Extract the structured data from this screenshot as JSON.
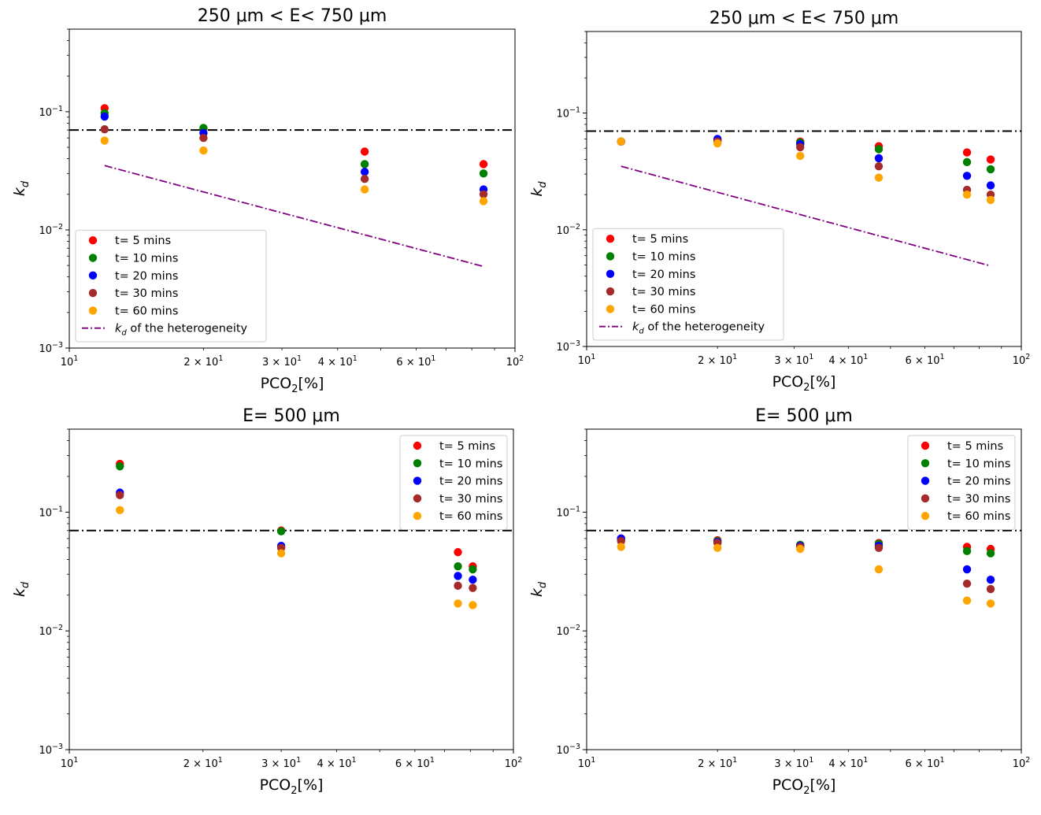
{
  "chart_data": [
    {
      "type": "scatter",
      "title": "250 μm < E< 750 μm",
      "xlabel": "PCO",
      "xlabel_sub": "2",
      "xlabel_suffix": "[%]",
      "ylabel": "k",
      "ylabel_sub": "d",
      "xscale": "log",
      "yscale": "log",
      "xlim": [
        10,
        100
      ],
      "ylim": [
        0.001,
        0.5
      ],
      "legend_position": "lower-left",
      "reference_line": {
        "y": 0.07,
        "style": "dash-dot",
        "color": "#000000"
      },
      "trend_line": {
        "legend_prefix": "k",
        "legend_sub": "d",
        "legend_suffix": " of the heterogeneity",
        "color": "#800080",
        "style": "dash-dot",
        "x": [
          12,
          85
        ],
        "y": [
          0.035,
          0.0049
        ]
      },
      "series": [
        {
          "name": "t= 5 mins",
          "color": "#ff0000",
          "x": [
            12,
            20,
            46,
            85
          ],
          "y": [
            0.107,
            0.072,
            0.046,
            0.036
          ]
        },
        {
          "name": "t= 10 mins",
          "color": "#008000",
          "x": [
            12,
            20,
            46,
            85
          ],
          "y": [
            0.097,
            0.073,
            0.036,
            0.03
          ]
        },
        {
          "name": "t= 20 mins",
          "color": "#0000ff",
          "x": [
            12,
            20,
            46,
            85
          ],
          "y": [
            0.091,
            0.066,
            0.031,
            0.022
          ]
        },
        {
          "name": "t= 30 mins",
          "color": "#a52a2a",
          "x": [
            12,
            20,
            46,
            85
          ],
          "y": [
            0.071,
            0.06,
            0.027,
            0.02
          ]
        },
        {
          "name": "t= 60 mins",
          "color": "#ffa500",
          "x": [
            12,
            20,
            46,
            85
          ],
          "y": [
            0.057,
            0.047,
            0.022,
            0.0175
          ]
        }
      ]
    },
    {
      "type": "scatter",
      "title": "250 μm < E< 750 μm",
      "xlabel": "PCO",
      "xlabel_sub": "2",
      "xlabel_suffix": "[%]",
      "ylabel": "k",
      "ylabel_sub": "d",
      "xscale": "log",
      "yscale": "log",
      "xlim": [
        10,
        100
      ],
      "ylim": [
        0.001,
        0.5
      ],
      "legend_position": "lower-left",
      "reference_line": {
        "y": 0.07,
        "style": "dash-dot",
        "color": "#000000"
      },
      "trend_line": {
        "legend_prefix": "k",
        "legend_sub": "d",
        "legend_suffix": " of the heterogeneity",
        "color": "#800080",
        "style": "dash-dot",
        "x": [
          12,
          85
        ],
        "y": [
          0.035,
          0.0049
        ]
      },
      "series": [
        {
          "name": "t= 5 mins",
          "color": "#ff0000",
          "x": [
            12,
            20,
            31,
            47,
            75,
            85
          ],
          "y": [
            0.057,
            0.058,
            0.057,
            0.052,
            0.046,
            0.04
          ]
        },
        {
          "name": "t= 10 mins",
          "color": "#008000",
          "x": [
            12,
            20,
            31,
            47,
            75,
            85
          ],
          "y": [
            0.057,
            0.058,
            0.056,
            0.049,
            0.038,
            0.033
          ]
        },
        {
          "name": "t= 20 mins",
          "color": "#0000ff",
          "x": [
            12,
            20,
            31,
            47,
            75,
            85
          ],
          "y": [
            0.057,
            0.06,
            0.054,
            0.041,
            0.029,
            0.024
          ]
        },
        {
          "name": "t= 30 mins",
          "color": "#a52a2a",
          "x": [
            12,
            20,
            31,
            47,
            75,
            85
          ],
          "y": [
            0.057,
            0.057,
            0.051,
            0.035,
            0.022,
            0.02
          ]
        },
        {
          "name": "t= 60 mins",
          "color": "#ffa500",
          "x": [
            12,
            20,
            31,
            47,
            75,
            85
          ],
          "y": [
            0.057,
            0.055,
            0.043,
            0.028,
            0.02,
            0.018
          ]
        }
      ]
    },
    {
      "type": "scatter",
      "title": "E= 500 μm",
      "xlabel": "PCO",
      "xlabel_sub": "2",
      "xlabel_suffix": "[%]",
      "ylabel": "k",
      "ylabel_sub": "d",
      "xscale": "log",
      "yscale": "log",
      "xlim": [
        10,
        100
      ],
      "ylim": [
        0.001,
        0.5
      ],
      "legend_position": "top-right",
      "reference_line": {
        "y": 0.07,
        "style": "dash-dot",
        "color": "#000000"
      },
      "series": [
        {
          "name": "t= 5 mins",
          "color": "#ff0000",
          "x": [
            13,
            30,
            75,
            81
          ],
          "y": [
            0.255,
            0.07,
            0.046,
            0.035
          ]
        },
        {
          "name": "t= 10 mins",
          "color": "#008000",
          "x": [
            13,
            30,
            75,
            81
          ],
          "y": [
            0.243,
            0.069,
            0.035,
            0.033
          ]
        },
        {
          "name": "t= 20 mins",
          "color": "#0000ff",
          "x": [
            13,
            30,
            75,
            81
          ],
          "y": [
            0.146,
            0.052,
            0.029,
            0.027
          ]
        },
        {
          "name": "t= 30 mins",
          "color": "#a52a2a",
          "x": [
            13,
            30,
            75,
            81
          ],
          "y": [
            0.139,
            0.05,
            0.024,
            0.023
          ]
        },
        {
          "name": "t= 60 mins",
          "color": "#ffa500",
          "x": [
            13,
            30,
            75,
            81
          ],
          "y": [
            0.104,
            0.045,
            0.017,
            0.0165
          ]
        }
      ]
    },
    {
      "type": "scatter",
      "title": "E= 500 μm",
      "xlabel": "PCO",
      "xlabel_sub": "2",
      "xlabel_suffix": "[%]",
      "ylabel": "k",
      "ylabel_sub": "d",
      "xscale": "log",
      "yscale": "log",
      "xlim": [
        10,
        100
      ],
      "ylim": [
        0.001,
        0.5
      ],
      "legend_position": "top-right",
      "reference_line": {
        "y": 0.07,
        "style": "dash-dot",
        "color": "#000000"
      },
      "series": [
        {
          "name": "t= 5 mins",
          "color": "#ff0000",
          "x": [
            12,
            20,
            31,
            47,
            75,
            85
          ],
          "y": [
            0.06,
            0.058,
            0.053,
            0.055,
            0.051,
            0.049
          ]
        },
        {
          "name": "t= 10 mins",
          "color": "#008000",
          "x": [
            12,
            20,
            31,
            47,
            75,
            85
          ],
          "y": [
            0.059,
            0.057,
            0.053,
            0.054,
            0.047,
            0.045
          ]
        },
        {
          "name": "t= 20 mins",
          "color": "#0000ff",
          "x": [
            12,
            20,
            31,
            47,
            75,
            85
          ],
          "y": [
            0.06,
            0.056,
            0.052,
            0.052,
            0.033,
            0.027
          ]
        },
        {
          "name": "t= 30 mins",
          "color": "#a52a2a",
          "x": [
            12,
            20,
            31,
            47,
            75,
            85
          ],
          "y": [
            0.057,
            0.055,
            0.051,
            0.05,
            0.025,
            0.0225
          ]
        },
        {
          "name": "t= 60 mins",
          "color": "#ffa500",
          "x": [
            12,
            20,
            31,
            47,
            75,
            85
          ],
          "y": [
            0.051,
            0.05,
            0.049,
            0.033,
            0.018,
            0.017
          ]
        }
      ]
    }
  ]
}
